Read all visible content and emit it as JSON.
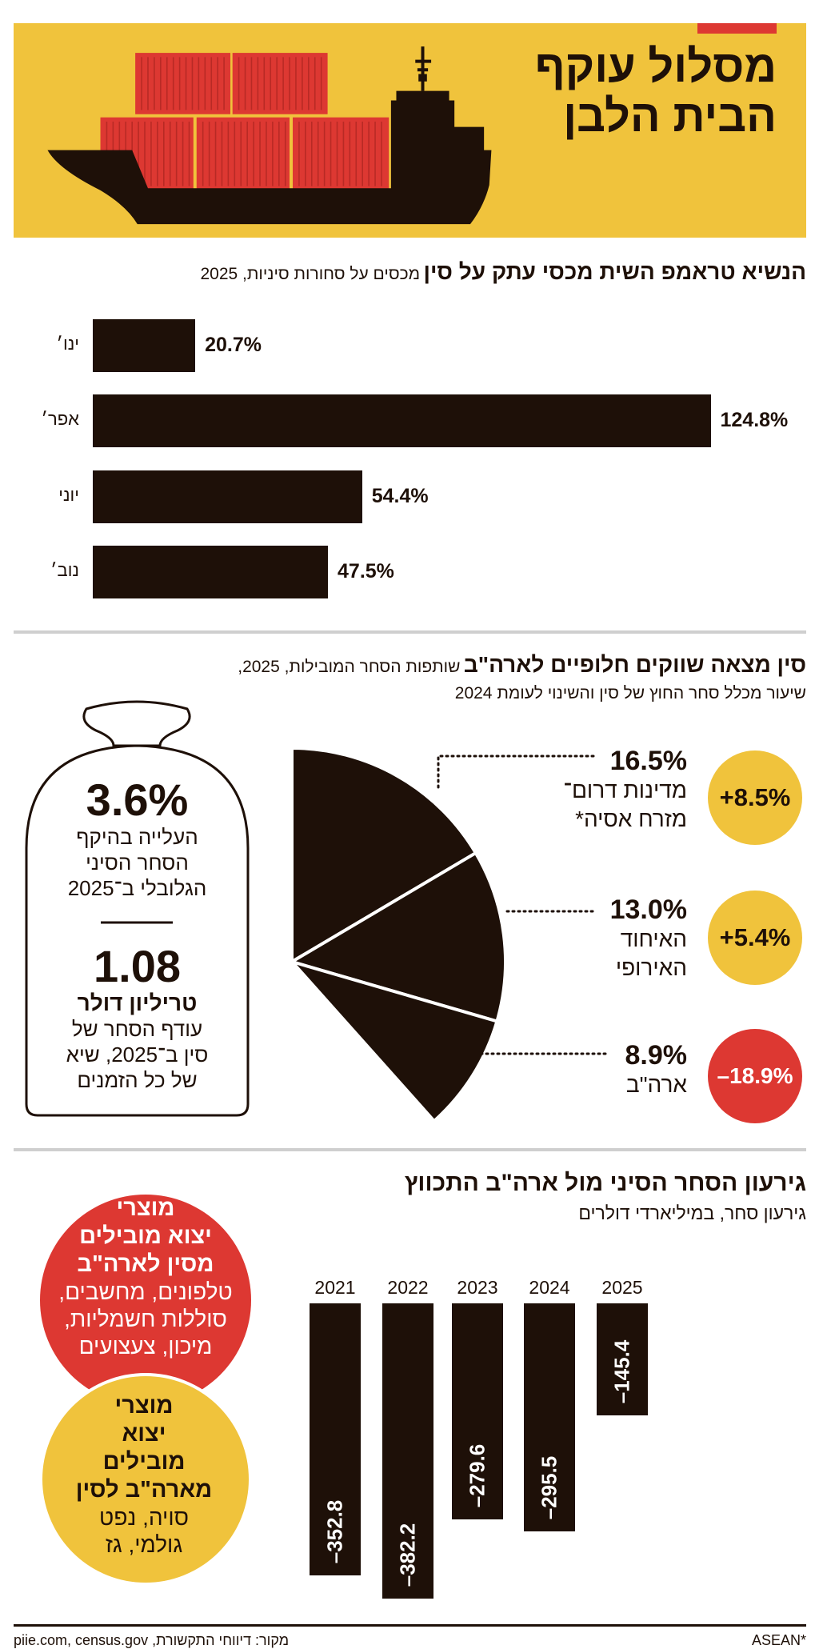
{
  "colors": {
    "yellow": "#f0c33c",
    "red": "#dd3832",
    "dark": "#1e1008",
    "divider": "#cfcfcf"
  },
  "header": {
    "title_line1": "מסלול עוקף",
    "title_line2": "הבית הלבן",
    "illustration": "cargo-ship-with-containers"
  },
  "tariffs": {
    "title": "הנשיא טראמפ השית מכסי עתק על סין",
    "subtitle": "מכסים על סחורות סיניות, 2025"
  },
  "partners": {
    "title": "סין מצאה שווקים חלופיים לארה\"ב",
    "subtitle_line1": "שותפות הסחר המובילות, 2025,",
    "subtitle_line2": "שיעור מכלל סחר החוץ של סין והשינוי לעומת 2024",
    "bag": {
      "stat1_value": "3.6%",
      "stat1_lines": [
        "העלייה בהיקף",
        "הסחר הסיני",
        "הגלובלי ב־2025"
      ],
      "stat2_value": "1.08",
      "stat2_unit": "טריליון דולר",
      "stat2_lines": [
        "עודף הסחר של",
        "סין ב־2025, שיא",
        "של כל הזמנים"
      ]
    }
  },
  "deficit": {
    "title": "גירעון הסחר הסיני מול ארה\"ב התכווץ",
    "subtitle": "גירעון סחר, במיליארדי דולרים",
    "exports_china_to_us": {
      "heading": [
        "מוצרי",
        "יצוא מובילים",
        "מסין לארה\"ב"
      ],
      "items": [
        "טלפונים, מחשבים,",
        "סוללות חשמליות,",
        "מיכון, צעצועים"
      ]
    },
    "exports_us_to_china": {
      "heading": [
        "מוצרי",
        "יצוא",
        "מובילים",
        "מארה\"ב לסין"
      ],
      "items": [
        "סויה, נפט",
        "גולמי, גז"
      ]
    }
  },
  "footer": {
    "source": "מקור: דיווחי התקשורת, piie.com, census.gov",
    "note": "ASEAN*"
  },
  "chart_data": [
    {
      "type": "bar",
      "orientation": "horizontal",
      "title": "הנשיא טראמפ השית מכסי עתק על סין",
      "subtitle": "מכסים על סחורות סיניות, 2025",
      "categories": [
        "ינו׳",
        "אפר׳",
        "יוני",
        "נוב׳"
      ],
      "values": [
        20.7,
        124.8,
        54.4,
        47.5
      ],
      "labels": [
        "20.7%",
        "124.8%",
        "54.4%",
        "47.5%"
      ],
      "unit": "%",
      "grid": false
    },
    {
      "type": "pie",
      "title": "סין מצאה שווקים חלופיים לארה\"ב",
      "slices": [
        {
          "name_lines": [
            "מדינות דרום־",
            "מזרח אסיה*"
          ],
          "value": 16.5,
          "label": "16.5%",
          "change": "+8.5%",
          "change_color": "#f0c33c"
        },
        {
          "name_lines": [
            "האיחוד",
            "האירופי"
          ],
          "value": 13.0,
          "label": "13.0%",
          "change": "+5.4%",
          "change_color": "#f0c33c"
        },
        {
          "name_lines": [
            "ארה\"ב"
          ],
          "value": 8.9,
          "label": "8.9%",
          "change": "–18.9%",
          "change_color": "#dd3832"
        }
      ],
      "unit": "%"
    },
    {
      "type": "bar",
      "orientation": "vertical",
      "title": "גירעון הסחר הסיני מול ארה\"ב התכווץ",
      "subtitle": "גירעון סחר, במיליארדי דולרים",
      "categories": [
        "2021",
        "2022",
        "2023",
        "2024",
        "2025"
      ],
      "values": [
        -352.8,
        -382.2,
        -279.6,
        -295.5,
        -145.4
      ],
      "labels": [
        "–352.8",
        "–382.2",
        "–279.6",
        "–295.5",
        "–145.4"
      ],
      "grid": false
    }
  ]
}
